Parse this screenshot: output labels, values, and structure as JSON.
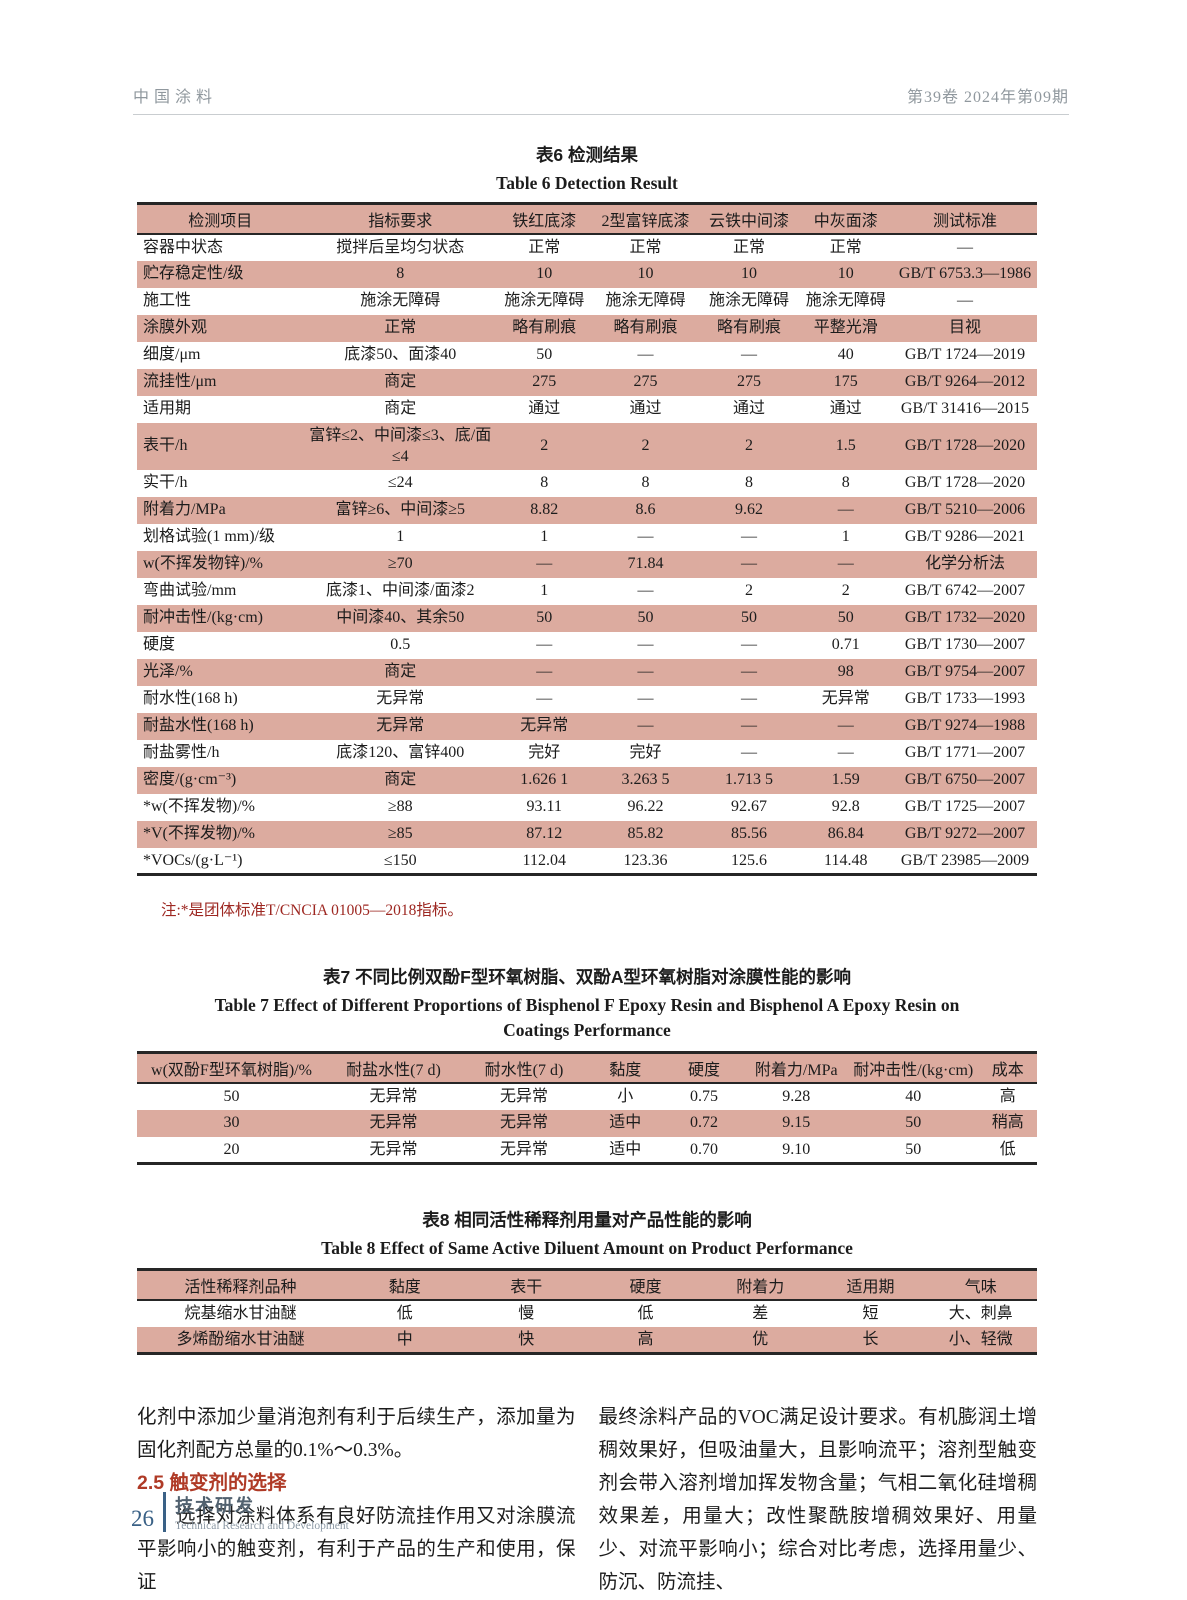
{
  "colors": {
    "table_band": "#dcab9f",
    "note_red": "#9d2721",
    "section_heading_red": "#af3a26",
    "footer_blue": "#3a6186",
    "header_gray": "#90989e"
  },
  "header": {
    "journal": "中国涂料",
    "issue": "第39卷  2024年第09期"
  },
  "table6": {
    "title_cn": "表6  检测结果",
    "title_en": "Table 6  Detection Result",
    "columns": [
      "检测项目",
      "指标要求",
      "铁红底漆",
      "2型富锌底漆",
      "云铁中间漆",
      "中灰面漆",
      "测试标准"
    ],
    "rows": [
      [
        "容器中状态",
        "搅拌后呈均匀状态",
        "正常",
        "正常",
        "正常",
        "正常",
        "—"
      ],
      [
        "贮存稳定性/级",
        "8",
        "10",
        "10",
        "10",
        "10",
        "GB/T 6753.3—1986"
      ],
      [
        "施工性",
        "施涂无障碍",
        "施涂无障碍",
        "施涂无障碍",
        "施涂无障碍",
        "施涂无障碍",
        "—"
      ],
      [
        "涂膜外观",
        "正常",
        "略有刷痕",
        "略有刷痕",
        "略有刷痕",
        "平整光滑",
        "目视"
      ],
      [
        "细度/μm",
        "底漆50、面漆40",
        "50",
        "—",
        "—",
        "40",
        "GB/T 1724—2019"
      ],
      [
        "流挂性/μm",
        "商定",
        "275",
        "275",
        "275",
        "175",
        "GB/T 9264—2012"
      ],
      [
        "适用期",
        "商定",
        "通过",
        "通过",
        "通过",
        "通过",
        "GB/T 31416—2015"
      ],
      [
        "表干/h",
        "富锌≤2、中间漆≤3、底/面≤4",
        "2",
        "2",
        "2",
        "1.5",
        "GB/T 1728—2020"
      ],
      [
        "实干/h",
        "≤24",
        "8",
        "8",
        "8",
        "8",
        "GB/T 1728—2020"
      ],
      [
        "附着力/MPa",
        "富锌≥6、中间漆≥5",
        "8.82",
        "8.6",
        "9.62",
        "—",
        "GB/T 5210—2006"
      ],
      [
        "划格试验(1 mm)/级",
        "1",
        "1",
        "—",
        "—",
        "1",
        "GB/T 9286—2021"
      ],
      [
        "w(不挥发物锌)/%",
        "≥70",
        "—",
        "71.84",
        "—",
        "—",
        "化学分析法"
      ],
      [
        "弯曲试验/mm",
        "底漆1、中间漆/面漆2",
        "1",
        "—",
        "2",
        "2",
        "GB/T 6742—2007"
      ],
      [
        "耐冲击性/(kg·cm)",
        "中间漆40、其余50",
        "50",
        "50",
        "50",
        "50",
        "GB/T 1732—2020"
      ],
      [
        "硬度",
        "0.5",
        "—",
        "—",
        "—",
        "0.71",
        "GB/T 1730—2007"
      ],
      [
        "光泽/%",
        "商定",
        "—",
        "—",
        "—",
        "98",
        "GB/T 9754—2007"
      ],
      [
        "耐水性(168 h)",
        "无异常",
        "—",
        "—",
        "—",
        "无异常",
        "GB/T 1733—1993"
      ],
      [
        "耐盐水性(168 h)",
        "无异常",
        "无异常",
        "—",
        "—",
        "—",
        "GB/T 9274—1988"
      ],
      [
        "耐盐雾性/h",
        "底漆120、富锌400",
        "完好",
        "完好",
        "—",
        "—",
        "GB/T 1771—2007"
      ],
      [
        "密度/(g·cm⁻³)",
        "商定",
        "1.626 1",
        "3.263 5",
        "1.713 5",
        "1.59",
        "GB/T 6750—2007"
      ],
      [
        "*w(不挥发物)/%",
        "≥88",
        "93.11",
        "96.22",
        "92.67",
        "92.8",
        "GB/T 1725—2007"
      ],
      [
        "*V(不挥发物)/%",
        "≥85",
        "87.12",
        "85.82",
        "85.56",
        "86.84",
        "GB/T 9272—2007"
      ],
      [
        "*VOCs/(g·L⁻¹)",
        "≤150",
        "112.04",
        "123.36",
        "125.6",
        "114.48",
        "GB/T 23985—2009"
      ]
    ],
    "note": "注:*是团体标准T/CNCIA 01005—2018指标。"
  },
  "table7": {
    "title_cn": "表7  不同比例双酚F型环氧树脂、双酚A型环氧树脂对涂膜性能的影响",
    "title_en_line1": "Table 7  Effect of Different Proportions of Bisphenol F Epoxy Resin and Bisphenol A Epoxy Resin on",
    "title_en_line2": "Coatings Performance",
    "columns": [
      "w(双酚F型环氧树脂)/%",
      "耐盐水性(7 d)",
      "耐水性(7 d)",
      "黏度",
      "硬度",
      "附着力/MPa",
      "耐冲击性/(kg·cm)",
      "成本"
    ],
    "rows": [
      [
        "50",
        "无异常",
        "无异常",
        "小",
        "0.75",
        "9.28",
        "40",
        "高"
      ],
      [
        "30",
        "无异常",
        "无异常",
        "适中",
        "0.72",
        "9.15",
        "50",
        "稍高"
      ],
      [
        "20",
        "无异常",
        "无异常",
        "适中",
        "0.70",
        "9.10",
        "50",
        "低"
      ]
    ]
  },
  "table8": {
    "title_cn": "表8  相同活性稀释剂用量对产品性能的影响",
    "title_en": "Table 8  Effect of Same Active Diluent Amount on Product Performance",
    "columns": [
      "活性稀释剂品种",
      "黏度",
      "表干",
      "硬度",
      "附着力",
      "适用期",
      "气味"
    ],
    "rows": [
      [
        "烷基缩水甘油醚",
        "低",
        "慢",
        "低",
        "差",
        "短",
        "大、刺鼻"
      ],
      [
        "多烯酚缩水甘油醚",
        "中",
        "快",
        "高",
        "优",
        "长",
        "小、轻微"
      ]
    ]
  },
  "body": {
    "left_para1": "化剂中添加少量消泡剂有利于后续生产，添加量为固化剂配方总量的0.1%～0.3%。",
    "section_heading": "2.5  触变剂的选择",
    "left_para2": "选择对涂料体系有良好防流挂作用又对涂膜流平影响小的触变剂，有利于产品的生产和使用，保证",
    "right_para": "最终涂料产品的VOC满足设计要求。有机膨润土增稠效果好，但吸油量大，且影响流平；溶剂型触变剂会带入溶剂增加挥发物含量；气相二氧化硅增稠效果差，用量大；改性聚酰胺增稠效果好、用量少、对流平影响小；综合对比考虑，选择用量少、防沉、防流挂、"
  },
  "footer": {
    "page_number": "26",
    "section_cn": "技术研发",
    "section_en": "Technical Research and Development"
  }
}
